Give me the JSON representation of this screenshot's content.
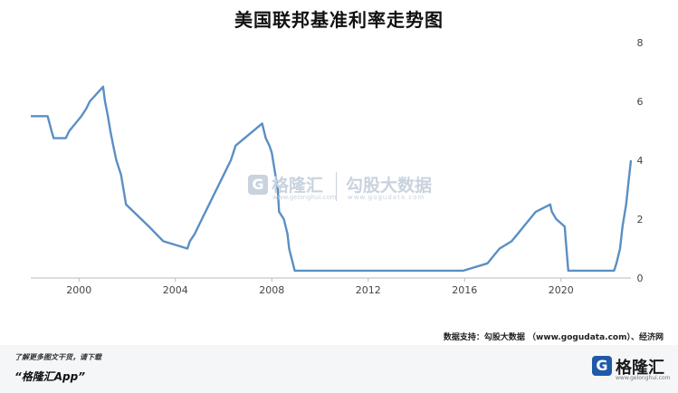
{
  "chart_data": {
    "type": "line",
    "title": "美国联邦基准利率走势图",
    "xlabel": "",
    "ylabel": "",
    "xlim": [
      1998.0,
      2022.9
    ],
    "ylim": [
      0,
      8
    ],
    "x_ticks": [
      2000,
      2004,
      2008,
      2012,
      2016,
      2020
    ],
    "y_ticks": [
      0,
      2,
      4,
      6,
      8
    ],
    "grid": false,
    "y_axis_side": "right",
    "line_color": "#5b8fc4",
    "series": [
      {
        "name": "",
        "x": [
          1998.0,
          1998.7,
          1998.78,
          1998.86,
          1998.95,
          1999.45,
          1999.6,
          1999.85,
          2000.1,
          2000.3,
          2000.45,
          2001.0,
          2001.08,
          2001.2,
          2001.3,
          2001.42,
          2001.55,
          2001.75,
          2001.85,
          2001.95,
          2002.9,
          2003.5,
          2004.5,
          2004.6,
          2004.8,
          2005.1,
          2005.4,
          2005.7,
          2006.0,
          2006.3,
          2006.5,
          2007.6,
          2007.75,
          2007.9,
          2008.0,
          2008.25,
          2008.3,
          2008.5,
          2008.65,
          2008.72,
          2008.95,
          2015.95,
          2016.95,
          2017.2,
          2017.45,
          2017.95,
          2018.2,
          2018.45,
          2018.7,
          2018.95,
          2019.55,
          2019.62,
          2019.8,
          2020.15,
          2020.2,
          2020.3,
          2022.2,
          2022.3,
          2022.45,
          2022.55,
          2022.7,
          2022.8,
          2022.9
        ],
        "values": [
          5.5,
          5.5,
          5.25,
          5.0,
          4.75,
          4.75,
          5.0,
          5.25,
          5.5,
          5.75,
          6.0,
          6.5,
          6.0,
          5.5,
          5.0,
          4.5,
          4.0,
          3.5,
          3.0,
          2.5,
          1.75,
          1.25,
          1.0,
          1.25,
          1.5,
          2.0,
          2.5,
          3.0,
          3.5,
          4.0,
          4.5,
          5.25,
          4.75,
          4.5,
          4.25,
          3.0,
          2.25,
          2.0,
          1.5,
          1.0,
          0.25,
          0.25,
          0.5,
          0.75,
          1.0,
          1.25,
          1.5,
          1.75,
          2.0,
          2.25,
          2.5,
          2.25,
          2.0,
          1.75,
          1.25,
          0.25,
          0.25,
          0.5,
          1.0,
          1.75,
          2.5,
          3.25,
          4.0
        ]
      }
    ]
  },
  "watermark": {
    "icon_glyph": "G",
    "name": "格隆汇",
    "name_sub": "www.gelonghui.com",
    "brand": "勾股大数据",
    "brand_sub": "www.gogudata.com"
  },
  "source_text": "数据支持：勾股大数据  （www.gogudata.com）、经济网",
  "footer": {
    "tip": "了解更多图文干货，请下载",
    "app": "“格隆汇App”",
    "logo_glyph": "G",
    "logo_name": "格隆汇",
    "logo_sub": "www.gelonghui.com"
  }
}
